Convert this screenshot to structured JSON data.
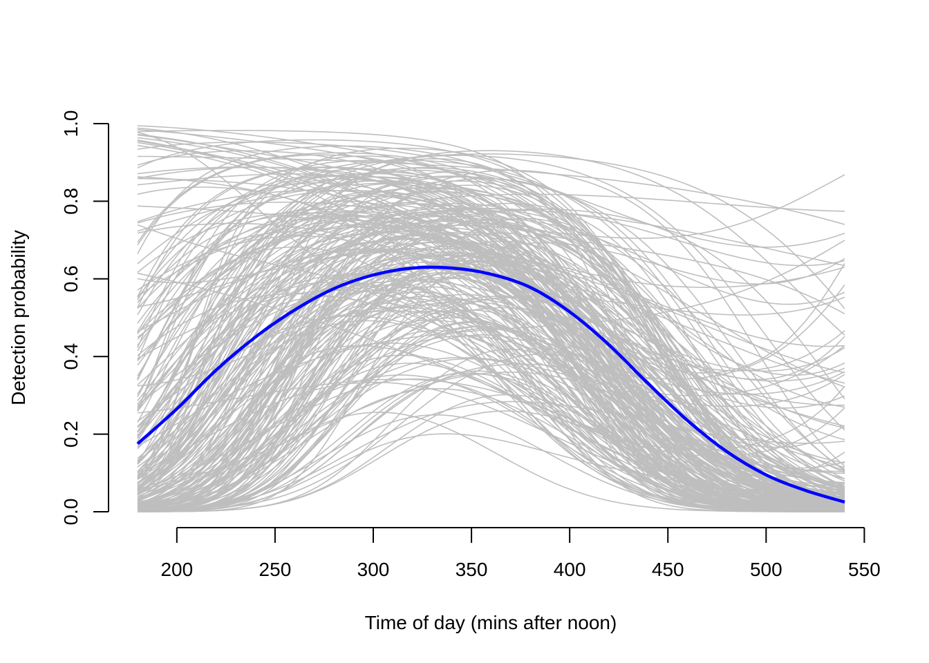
{
  "chart_data": {
    "type": "line",
    "title": "",
    "xlabel": "Time of day (mins after noon)",
    "ylabel": "Detection probability",
    "xlim": [
      180,
      540
    ],
    "ylim": [
      0,
      1
    ],
    "x_ticks": [
      200,
      250,
      300,
      350,
      400,
      450,
      500,
      550
    ],
    "y_ticks": [
      0.0,
      0.2,
      0.4,
      0.6,
      0.8,
      1.0
    ],
    "grid": false,
    "legend": "none",
    "colors": {
      "draws": "#bebebe",
      "mean": "#0000ff"
    },
    "mean_series": {
      "x": [
        180,
        200,
        220,
        240,
        260,
        280,
        300,
        320,
        340,
        360,
        380,
        400,
        420,
        440,
        460,
        480,
        500,
        520,
        540
      ],
      "values": [
        0.175,
        0.265,
        0.365,
        0.45,
        0.52,
        0.575,
        0.61,
        0.628,
        0.628,
        0.612,
        0.578,
        0.515,
        0.43,
        0.33,
        0.235,
        0.155,
        0.095,
        0.055,
        0.025
      ]
    },
    "draw_series": {
      "count": 250,
      "example_draws": [
        {
          "x": [
            180,
            270,
            360,
            450,
            540
          ],
          "values": [
            0.99,
            0.97,
            0.9,
            0.55,
            0.38
          ]
        },
        {
          "x": [
            180,
            270,
            360,
            450,
            540
          ],
          "values": [
            0.8,
            0.74,
            0.62,
            0.6,
            0.63
          ]
        },
        {
          "x": [
            180,
            270,
            360,
            450,
            540
          ],
          "values": [
            0.02,
            0.09,
            0.2,
            0.06,
            0.0
          ]
        },
        {
          "x": [
            180,
            270,
            360,
            450,
            540
          ],
          "values": [
            0.05,
            0.6,
            0.94,
            0.5,
            0.05
          ]
        },
        {
          "x": [
            180,
            270,
            360,
            450,
            540
          ],
          "values": [
            0.3,
            0.6,
            0.65,
            0.4,
            0.68
          ]
        }
      ]
    }
  }
}
